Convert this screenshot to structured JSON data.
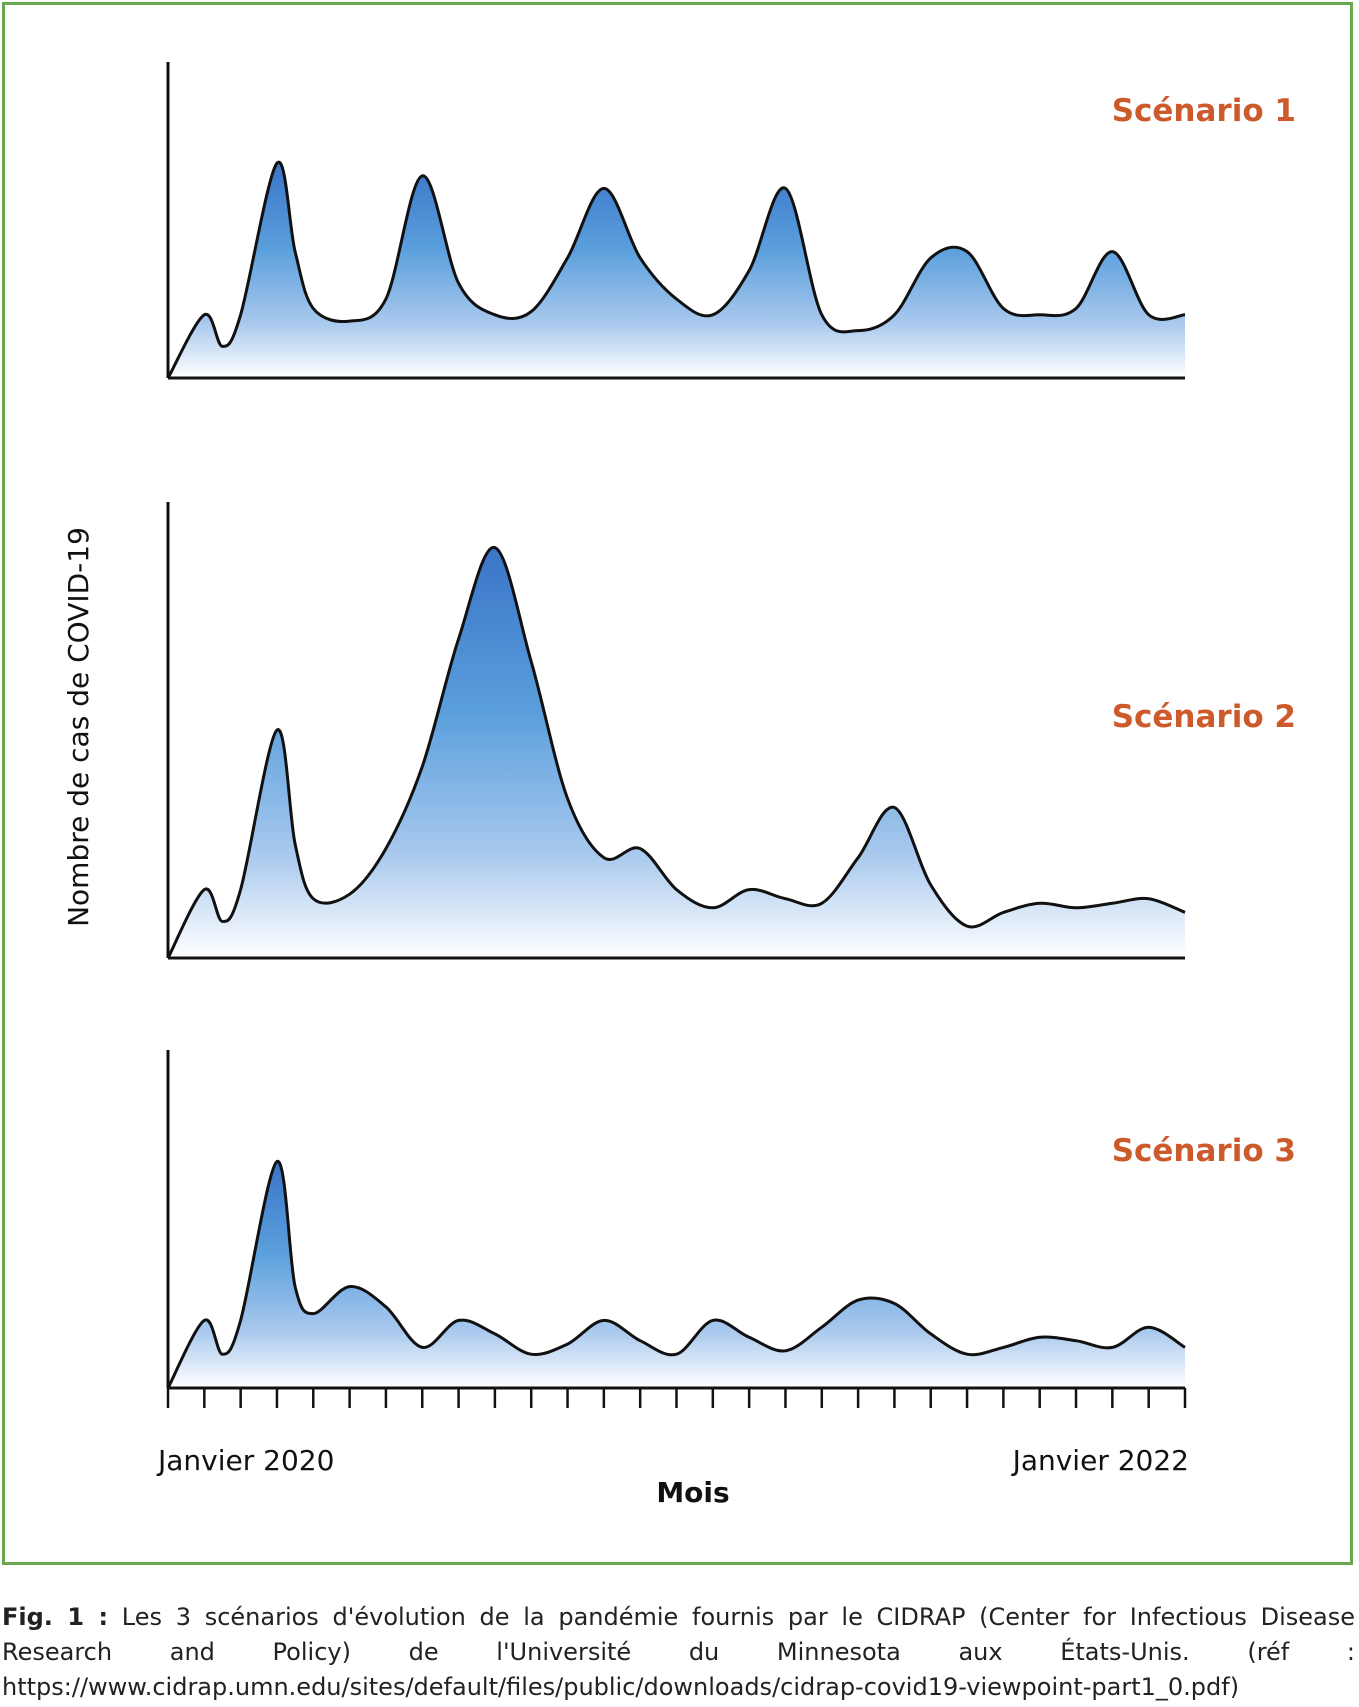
{
  "figure": {
    "ylabel": "Nombre de cas de COVID-19",
    "xlabel": "Mois",
    "x_start_label": "Janvier 2020",
    "x_end_label": "Janvier 2022",
    "colors": {
      "frame": "#6aa84f",
      "title": "#cc5a2a",
      "fill_top": "#3f7fcf",
      "fill_mid": "#5aa0dc",
      "fill_bottom": "#ffffff",
      "line": "#111111"
    }
  },
  "caption": {
    "label": "Fig. 1 :",
    "text": " Les 3 scénarios d'évolution de la pandémie fournis par le CIDRAP (Center for Infectious Disease Research and Policy) de l'Université du Minnesota aux États-Unis. (réf : https://www.cidrap.umn.edu/sites/default/files/public/downloads/cidrap-covid19-viewpoint-part1_0.pdf)"
  },
  "chart_data": [
    {
      "type": "area",
      "title": "Scénario 1",
      "x": [
        0,
        1,
        1.5,
        2,
        3,
        3.5,
        4,
        5,
        6,
        7,
        8,
        9,
        10,
        11,
        12,
        13,
        14,
        15,
        16,
        17,
        18,
        19,
        20,
        21,
        22,
        23,
        24,
        25,
        26,
        27,
        28
      ],
      "y": [
        0,
        20,
        10,
        20,
        68,
        40,
        22,
        18,
        25,
        64,
        30,
        20,
        21,
        38,
        60,
        38,
        25,
        20,
        34,
        60,
        20,
        15,
        20,
        38,
        40,
        22,
        20,
        22,
        40,
        20,
        20
      ],
      "xlim": [
        0,
        28
      ],
      "ylim": [
        0,
        100
      ]
    },
    {
      "type": "area",
      "title": "Scénario 2",
      "x": [
        0,
        1,
        1.5,
        2,
        3,
        3.5,
        4,
        5,
        6,
        7,
        8,
        9,
        10,
        11,
        12,
        13,
        14,
        15,
        16,
        17,
        18,
        19,
        20,
        21,
        22,
        23,
        24,
        25,
        26,
        27,
        28
      ],
      "y": [
        0,
        15,
        8,
        15,
        50,
        25,
        13,
        14,
        24,
        42,
        70,
        90,
        65,
        35,
        22,
        24,
        15,
        11,
        15,
        13,
        12,
        22,
        33,
        16,
        7,
        10,
        12,
        11,
        12,
        13,
        10
      ],
      "xlim": [
        0,
        28
      ],
      "ylim": [
        0,
        100
      ]
    },
    {
      "type": "area",
      "title": "Scénario 3",
      "x": [
        0,
        1,
        1.5,
        2,
        3,
        3.5,
        4,
        5,
        6,
        7,
        8,
        9,
        10,
        11,
        12,
        13,
        14,
        15,
        16,
        17,
        18,
        19,
        20,
        21,
        22,
        23,
        24,
        25,
        26,
        27,
        28
      ],
      "y": [
        0,
        20,
        10,
        20,
        67,
        30,
        22,
        30,
        24,
        12,
        20,
        16,
        10,
        13,
        20,
        14,
        10,
        20,
        15,
        11,
        18,
        26,
        25,
        16,
        10,
        12,
        15,
        14,
        12,
        18,
        12
      ],
      "xlim": [
        0,
        28
      ],
      "ylim": [
        0,
        100
      ]
    }
  ]
}
